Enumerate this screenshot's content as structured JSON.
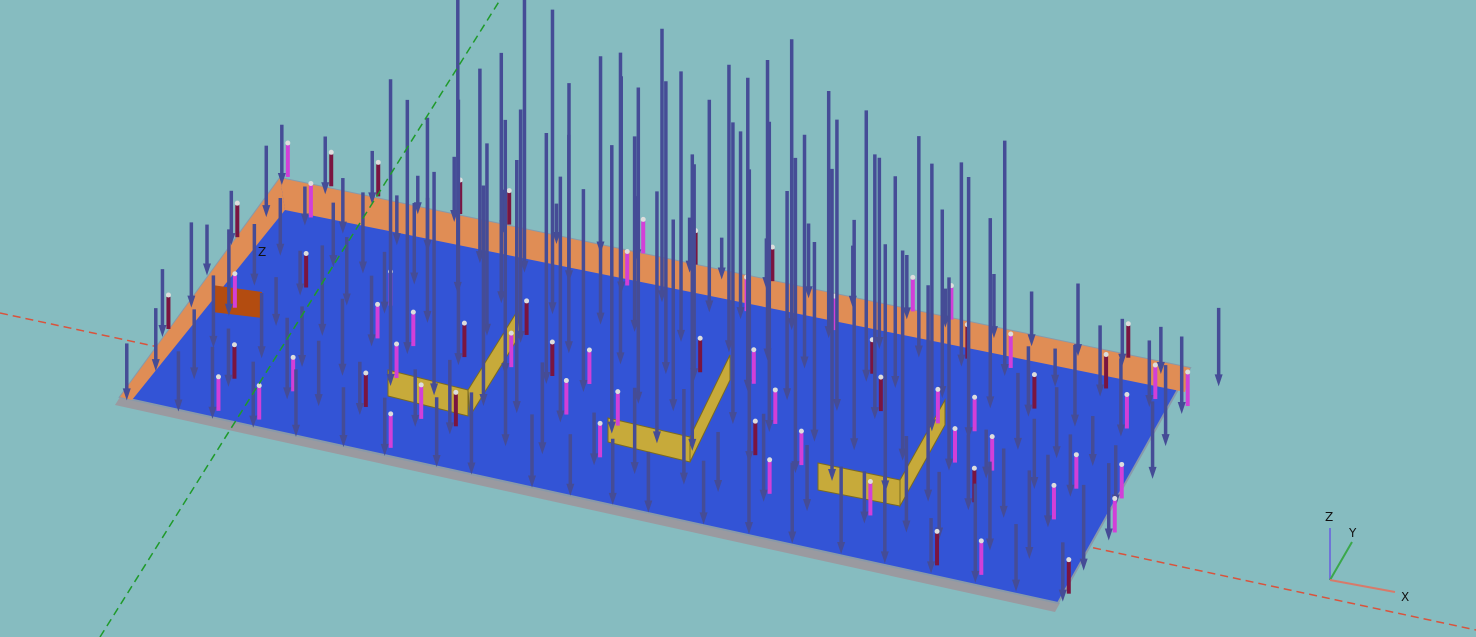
{
  "origin_label": "Z",
  "triad": {
    "z": "Z",
    "y": "Y",
    "x": "X"
  }
}
